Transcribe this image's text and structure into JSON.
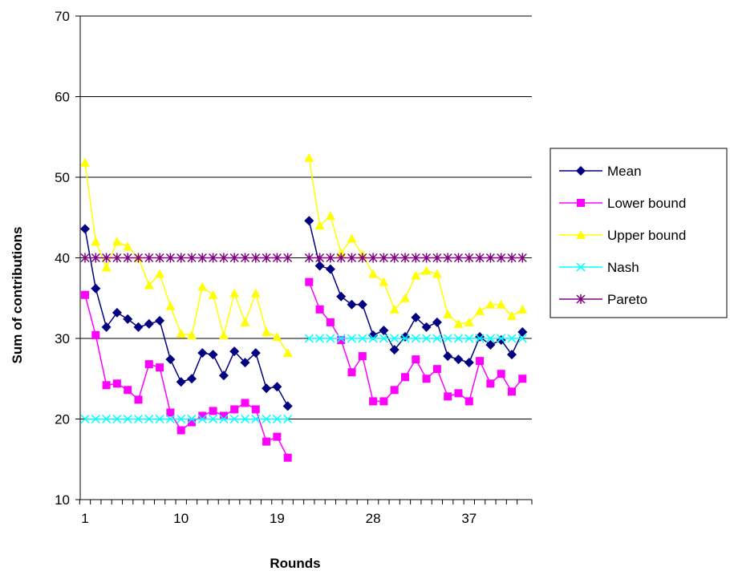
{
  "chart_data": {
    "type": "line",
    "xlabel": "Rounds",
    "ylabel": "Sum of contributions",
    "xlim": [
      1,
      42
    ],
    "ylim": [
      10,
      70
    ],
    "yticks": [
      10,
      20,
      30,
      40,
      50,
      60,
      70
    ],
    "xtick_labels": [
      1,
      10,
      19,
      28,
      37
    ],
    "grid": "horizontal",
    "legend": "right",
    "series": [
      {
        "name": "Mean",
        "color": "#000080",
        "marker": "diamond",
        "segments": [
          {
            "x": [
              1,
              2,
              3,
              4,
              5,
              6,
              7,
              8,
              9,
              10,
              11,
              12,
              13,
              14,
              15,
              16,
              17,
              18,
              19,
              20
            ],
            "y": [
              43.6,
              36.2,
              31.4,
              33.2,
              32.4,
              31.4,
              31.8,
              32.2,
              27.4,
              24.6,
              25.0,
              28.2,
              28.0,
              25.4,
              28.4,
              27.0,
              28.2,
              23.8,
              24.0,
              21.6
            ]
          },
          {
            "x": [
              22,
              23,
              24,
              25,
              26,
              27,
              28,
              29,
              30,
              31,
              32,
              33,
              34,
              35,
              36,
              37,
              38,
              39,
              40,
              41,
              42
            ],
            "y": [
              44.6,
              39.0,
              38.6,
              35.2,
              34.2,
              34.2,
              30.4,
              31.0,
              28.6,
              30.2,
              32.6,
              31.4,
              32.0,
              27.8,
              27.4,
              27.0,
              30.2,
              29.2,
              29.8,
              28.0,
              30.8
            ]
          }
        ]
      },
      {
        "name": "Lower bound",
        "color": "#ff00ff",
        "marker": "square",
        "segments": [
          {
            "x": [
              1,
              2,
              3,
              4,
              5,
              6,
              7,
              8,
              9,
              10,
              11,
              12,
              13,
              14,
              15,
              16,
              17,
              18,
              19,
              20
            ],
            "y": [
              35.4,
              30.4,
              24.2,
              24.4,
              23.6,
              22.4,
              26.8,
              26.4,
              20.8,
              18.6,
              19.6,
              20.4,
              21.0,
              20.4,
              21.2,
              22.0,
              21.2,
              17.2,
              17.8,
              15.2
            ]
          },
          {
            "x": [
              22,
              23,
              24,
              25,
              26,
              27,
              28,
              29,
              30,
              31,
              32,
              33,
              34,
              35,
              36,
              37,
              38,
              39,
              40,
              41,
              42
            ],
            "y": [
              37.0,
              33.6,
              32.0,
              29.8,
              25.8,
              27.8,
              22.2,
              22.2,
              23.6,
              25.2,
              27.4,
              25.0,
              26.2,
              22.8,
              23.2,
              22.2,
              27.2,
              24.4,
              25.6,
              23.4,
              25.0
            ]
          }
        ]
      },
      {
        "name": "Upper bound",
        "color": "#ffff00",
        "marker": "triangle",
        "segments": [
          {
            "x": [
              1,
              2,
              3,
              4,
              5,
              6,
              7,
              8,
              9,
              10,
              11,
              12,
              13,
              14,
              15,
              16,
              17,
              18,
              19,
              20
            ],
            "y": [
              51.8,
              42.0,
              38.8,
              42.0,
              41.4,
              40.0,
              36.6,
              38.0,
              34.0,
              30.6,
              30.4,
              36.4,
              35.4,
              30.4,
              35.6,
              32.0,
              35.6,
              30.8,
              30.2,
              28.2
            ]
          },
          {
            "x": [
              22,
              23,
              24,
              25,
              26,
              27,
              28,
              29,
              30,
              31,
              32,
              33,
              34,
              35,
              36,
              37,
              38,
              39,
              40,
              41,
              42
            ],
            "y": [
              52.4,
              44.0,
              45.2,
              40.6,
              42.4,
              40.4,
              38.0,
              37.0,
              33.6,
              35.0,
              37.8,
              38.4,
              38.0,
              33.0,
              31.8,
              32.0,
              33.4,
              34.2,
              34.2,
              32.8,
              33.6
            ]
          }
        ]
      },
      {
        "name": "Nash",
        "color": "#00ffff",
        "marker": "x",
        "segments": [
          {
            "x": [
              1,
              2,
              3,
              4,
              5,
              6,
              7,
              8,
              9,
              10,
              11,
              12,
              13,
              14,
              15,
              16,
              17,
              18,
              19,
              20
            ],
            "y": [
              20,
              20,
              20,
              20,
              20,
              20,
              20,
              20,
              20,
              20,
              20,
              20,
              20,
              20,
              20,
              20,
              20,
              20,
              20,
              20
            ]
          },
          {
            "x": [
              22,
              23,
              24,
              25,
              26,
              27,
              28,
              29,
              30,
              31,
              32,
              33,
              34,
              35,
              36,
              37,
              38,
              39,
              40,
              41,
              42
            ],
            "y": [
              30,
              30,
              30,
              30,
              30,
              30,
              30,
              30,
              30,
              30,
              30,
              30,
              30,
              30,
              30,
              30,
              30,
              30,
              30,
              30,
              30
            ]
          }
        ]
      },
      {
        "name": "Pareto",
        "color": "#800080",
        "marker": "star",
        "segments": [
          {
            "x": [
              1,
              2,
              3,
              4,
              5,
              6,
              7,
              8,
              9,
              10,
              11,
              12,
              13,
              14,
              15,
              16,
              17,
              18,
              19,
              20
            ],
            "y": [
              40,
              40,
              40,
              40,
              40,
              40,
              40,
              40,
              40,
              40,
              40,
              40,
              40,
              40,
              40,
              40,
              40,
              40,
              40,
              40
            ]
          },
          {
            "x": [
              22,
              23,
              24,
              25,
              26,
              27,
              28,
              29,
              30,
              31,
              32,
              33,
              34,
              35,
              36,
              37,
              38,
              39,
              40,
              41,
              42
            ],
            "y": [
              40,
              40,
              40,
              40,
              40,
              40,
              40,
              40,
              40,
              40,
              40,
              40,
              40,
              40,
              40,
              40,
              40,
              40,
              40,
              40,
              40
            ]
          }
        ]
      }
    ]
  }
}
